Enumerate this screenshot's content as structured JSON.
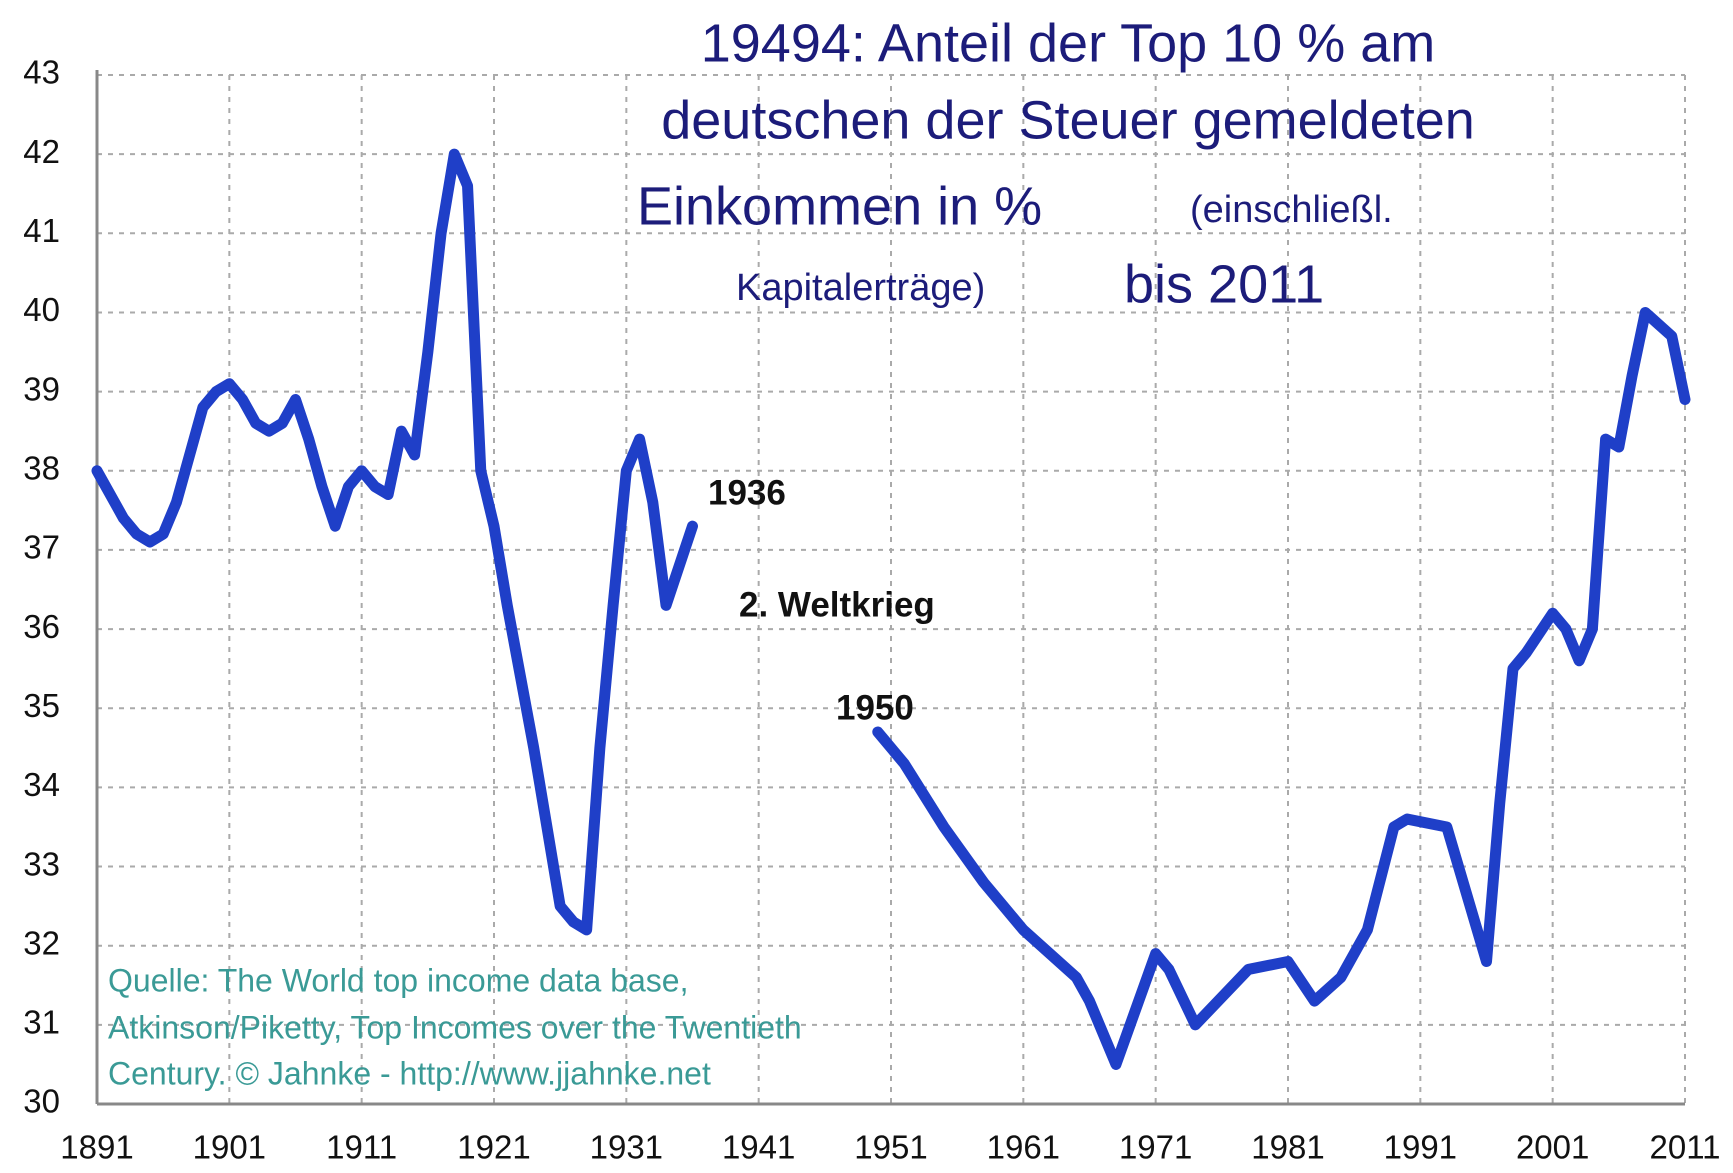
{
  "chart_data": {
    "type": "line",
    "title": [
      "19494: Anteil der Top 10 % am",
      "deutschen der Steuer gemeldeten",
      "Einkommen in %",
      "(einschließl.",
      "Kapitalerträge)",
      "bis 2011"
    ],
    "annotations": [
      "1936",
      "2. Weltkrieg",
      "1950"
    ],
    "source": [
      "Quelle: The World top income data base,",
      "Atkinson/Piketty, Top Incomes over the Twentieth",
      "Century. © Jahnke - http://www.jjahnke.net"
    ],
    "x": [
      1891,
      1893,
      1894,
      1895,
      1896,
      1897,
      1898,
      1899,
      1900,
      1901,
      1902,
      1903,
      1904,
      1905,
      1906,
      1907,
      1908,
      1909,
      1910,
      1911,
      1912,
      1913,
      1914,
      1915,
      1916,
      1917,
      1918,
      1919,
      1920,
      1921,
      1922,
      1923,
      1924,
      1925,
      1926,
      1927,
      1928,
      1929,
      1930,
      1931,
      1932,
      1933,
      1934,
      1935,
      1936,
      1943,
      1950,
      1952,
      1955,
      1958,
      1961,
      1965,
      1966,
      1968,
      1971,
      1972,
      1974,
      1978,
      1981,
      1983,
      1985,
      1987,
      1989,
      1990,
      1993,
      1996,
      1997,
      1998,
      1999,
      2001,
      2002,
      2003,
      2004,
      2005,
      2006,
      2007,
      2008,
      2010,
      2011
    ],
    "series": [
      {
        "name": "Top 10 %",
        "color": "#1f3fc8",
        "values": [
          38.0,
          37.4,
          37.2,
          37.1,
          37.2,
          37.6,
          38.2,
          38.8,
          39.0,
          39.1,
          38.9,
          38.6,
          38.5,
          38.6,
          38.9,
          38.4,
          37.8,
          37.3,
          37.8,
          38.0,
          37.8,
          37.7,
          38.5,
          38.2,
          39.5,
          41.0,
          42.0,
          41.6,
          38.0,
          37.3,
          36.3,
          35.4,
          34.5,
          33.5,
          32.5,
          32.3,
          32.2,
          34.5,
          36.3,
          38.0,
          38.4,
          37.6,
          36.3,
          36.8,
          37.3,
          null,
          34.7,
          34.3,
          33.5,
          32.8,
          32.2,
          31.6,
          31.3,
          30.5,
          31.9,
          31.7,
          31.0,
          31.7,
          31.8,
          31.3,
          31.6,
          32.2,
          33.5,
          33.6,
          33.5,
          31.8,
          33.8,
          35.5,
          35.7,
          36.2,
          36.0,
          35.6,
          36.0,
          38.4,
          38.3,
          39.2,
          40.0,
          39.7,
          38.9
        ]
      }
    ],
    "xlim": [
      1891,
      2011
    ],
    "xticks": [
      1891,
      1901,
      1911,
      1921,
      1931,
      1941,
      1951,
      1961,
      1971,
      1981,
      1991,
      2001,
      2011
    ],
    "ylim": [
      30,
      43
    ],
    "yticks": [
      30,
      31,
      32,
      33,
      34,
      35,
      36,
      37,
      38,
      39,
      40,
      41,
      42,
      43
    ],
    "grid": true
  }
}
